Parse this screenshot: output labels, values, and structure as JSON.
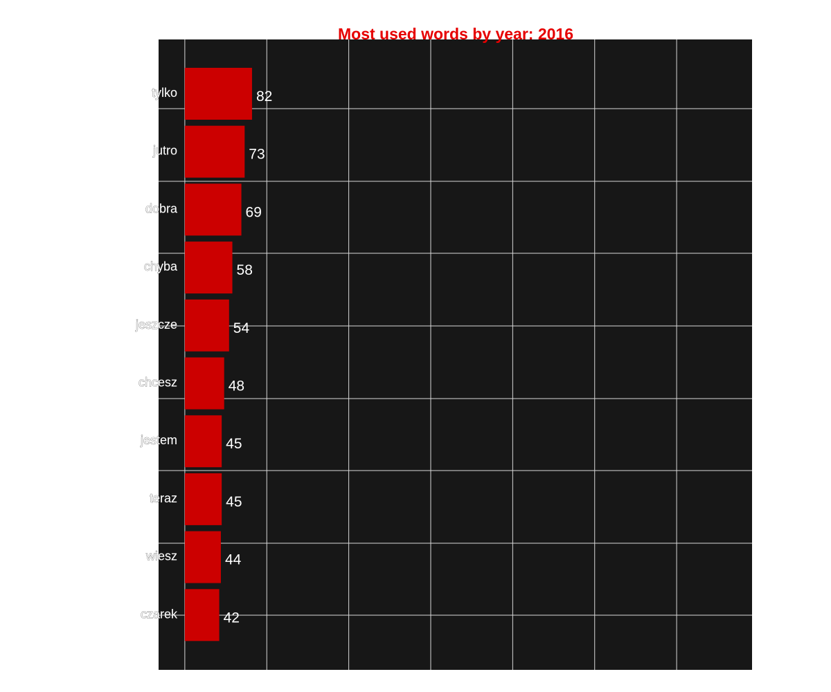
{
  "chart_data": {
    "type": "bar",
    "orientation": "horizontal",
    "title": "Most used words by year: 2016",
    "xlabel": "",
    "ylabel": "",
    "categories": [
      "tylko",
      "jutro",
      "dobra",
      "chyba",
      "jeszcze",
      "chcesz",
      "jestem",
      "teraz",
      "wiesz",
      "czarek"
    ],
    "values": [
      82,
      73,
      69,
      58,
      54,
      48,
      45,
      45,
      44,
      42
    ],
    "xlim": [
      -32,
      692
    ],
    "grid": true,
    "legend": "none"
  },
  "colors": {
    "background": "#ffffff",
    "panel": "#171717",
    "grid": "#d9d9d9",
    "bar": "#cc0000",
    "title": "#e60000",
    "value_text": "#ffffff"
  }
}
